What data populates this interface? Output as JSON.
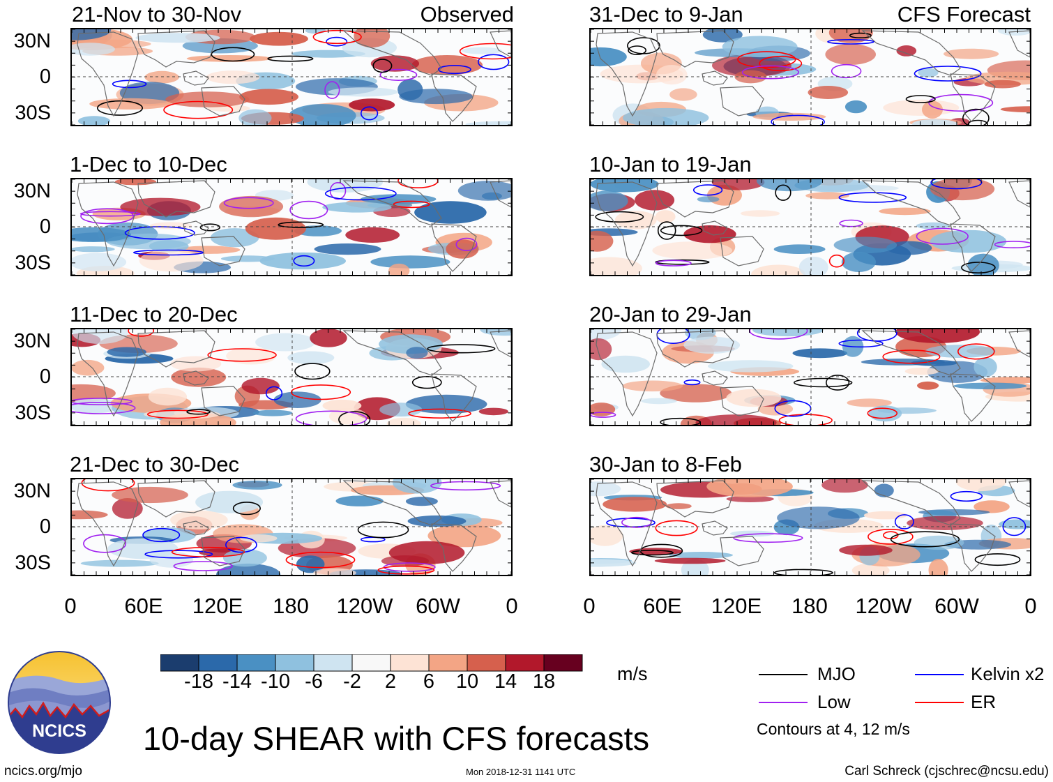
{
  "headers": {
    "left_tag": "Observed",
    "right_tag": "CFS Forecast"
  },
  "panels": [
    {
      "title": "21-Nov to 30-Nov",
      "seed": 11
    },
    {
      "title": "1-Dec to 10-Dec",
      "seed": 23
    },
    {
      "title": "11-Dec to 20-Dec",
      "seed": 37
    },
    {
      "title": "21-Dec to 30-Dec",
      "seed": 41
    },
    {
      "title": "31-Dec to 9-Jan",
      "seed": 53
    },
    {
      "title": "10-Jan to 19-Jan",
      "seed": 67
    },
    {
      "title": "20-Jan to 29-Jan",
      "seed": 71
    },
    {
      "title": "30-Jan to 8-Feb",
      "seed": 83
    }
  ],
  "lat_labels": [
    "30N",
    "0",
    "30S"
  ],
  "lon_labels": [
    "0",
    "60E",
    "120E",
    "180",
    "120W",
    "60W",
    "0"
  ],
  "colorbar": {
    "colors": [
      "#1b3d6e",
      "#2b69aa",
      "#4a90c3",
      "#8fc1df",
      "#cfe4f1",
      "#f8f8f8",
      "#fde3d5",
      "#f3a585",
      "#d6604d",
      "#b2182b",
      "#67001f"
    ],
    "labels": [
      "-18",
      "-14",
      "-10",
      "-6",
      "-2",
      "2",
      "6",
      "10",
      "14",
      "18"
    ],
    "units": "m/s"
  },
  "legend": {
    "items": [
      {
        "label": "MJO",
        "color": "#000000"
      },
      {
        "label": "Kelvin x2",
        "color": "#0000ff"
      },
      {
        "label": "Low",
        "color": "#a020f0"
      },
      {
        "label": "ER",
        "color": "#ff0000"
      }
    ],
    "contour_note": "Contours at 4, 12 m/s"
  },
  "main_title": "10-day SHEAR with CFS forecasts",
  "footer": {
    "left": "ncics.org/mjo",
    "middle": "Mon 2018-12-31 1141 UTC",
    "right": "Carl Schreck (cjschrec@ncsu.edu)"
  },
  "logo": {
    "text": "NCICS"
  }
}
